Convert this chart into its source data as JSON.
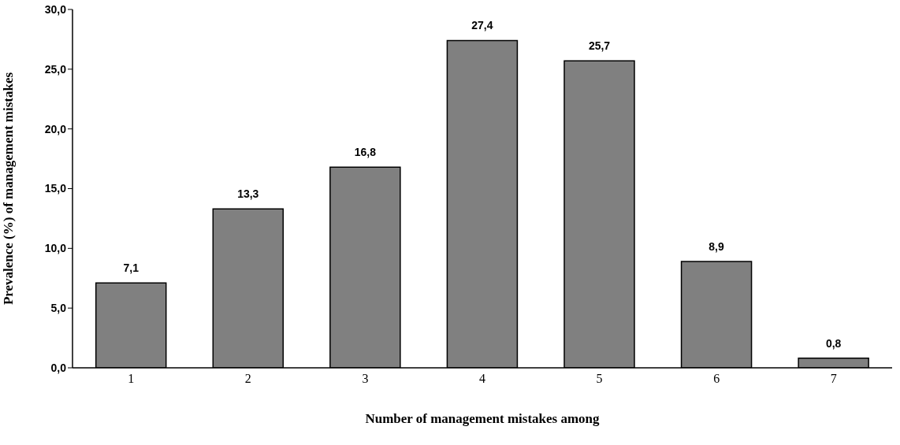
{
  "chart_data": {
    "type": "bar",
    "xlabel": "Number of management mistakes among",
    "ylabel": "Prevalence (%) of management mistakes",
    "categories": [
      "1",
      "2",
      "3",
      "4",
      "5",
      "6",
      "7"
    ],
    "values": [
      7.1,
      13.3,
      16.8,
      27.4,
      25.7,
      8.9,
      0.8
    ],
    "value_labels": [
      "7,1",
      "13,3",
      "16,8",
      "27,4",
      "25,7",
      "8,9",
      "0,8"
    ],
    "color": "#808080",
    "ylim": [
      0,
      30
    ],
    "yticks": [
      {
        "value": 0,
        "label": "0,0"
      },
      {
        "value": 5,
        "label": "5,0"
      },
      {
        "value": 10,
        "label": "10,0"
      },
      {
        "value": 15,
        "label": "15,0"
      },
      {
        "value": 20,
        "label": "20,0"
      },
      {
        "value": 25,
        "label": "25,0"
      },
      {
        "value": 30,
        "label": "30,0"
      }
    ],
    "grid": false,
    "legend": false
  }
}
